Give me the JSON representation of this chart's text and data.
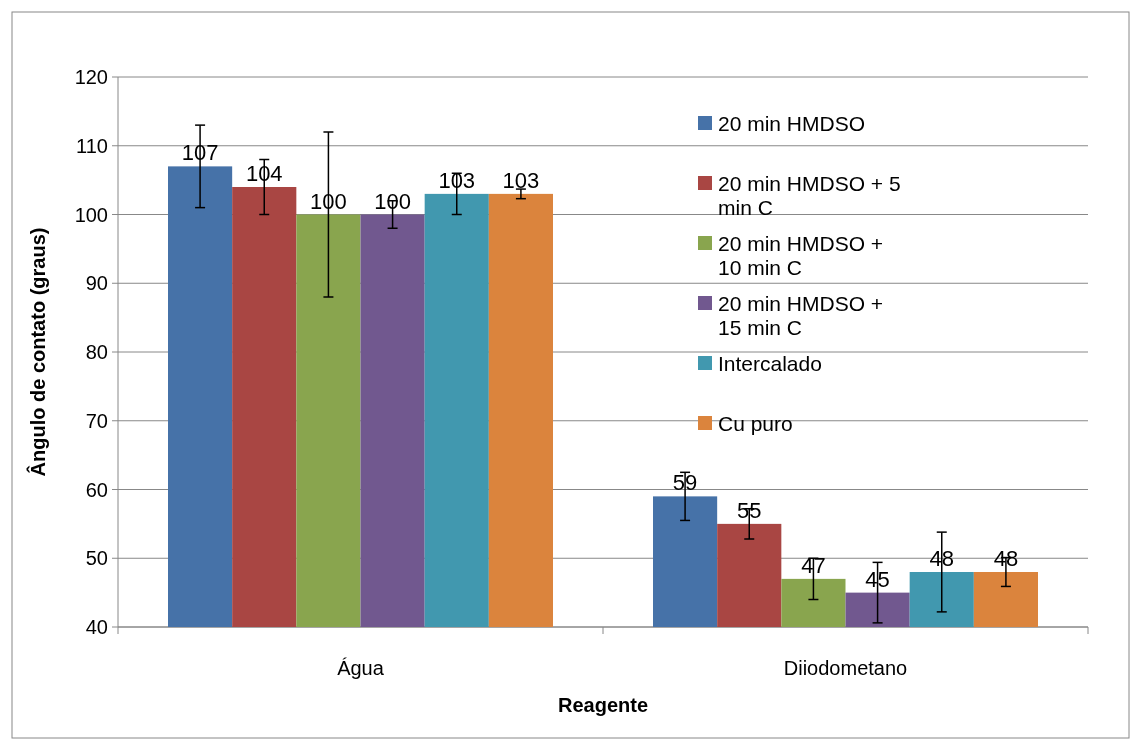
{
  "chart_data": {
    "type": "bar",
    "xlabel": "Reagente",
    "ylabel": "Ângulo de contato (graus)",
    "categories": [
      "Água",
      "Diiodometano"
    ],
    "series": [
      {
        "name": "20 min HMDSO",
        "color": "#4672a8",
        "values": [
          107,
          59
        ],
        "errors": [
          6,
          3.5
        ]
      },
      {
        "name": "20 min HMDSO + 5 min C",
        "color": "#a94643",
        "values": [
          104,
          55
        ],
        "errors": [
          4,
          2.2
        ]
      },
      {
        "name": "20 min HMDSO + 10 min C",
        "color": "#89a54e",
        "values": [
          100,
          47
        ],
        "errors": [
          12,
          3
        ]
      },
      {
        "name": "20 min HMDSO + 15 min C",
        "color": "#71588f",
        "values": [
          100,
          45
        ],
        "errors": [
          2,
          4.4
        ]
      },
      {
        "name": "Intercalado",
        "color": "#4198af",
        "values": [
          103,
          48
        ],
        "errors": [
          3,
          5.8
        ]
      },
      {
        "name": "Cu puro",
        "color": "#db843d",
        "values": [
          103,
          48
        ],
        "errors": [
          0.7,
          2.1
        ]
      }
    ],
    "ylim": [
      40,
      120
    ],
    "yticks": [
      40,
      50,
      60,
      70,
      80,
      90,
      100,
      110,
      120
    ],
    "grid": "y",
    "legend": "top right",
    "data_labels": true
  }
}
